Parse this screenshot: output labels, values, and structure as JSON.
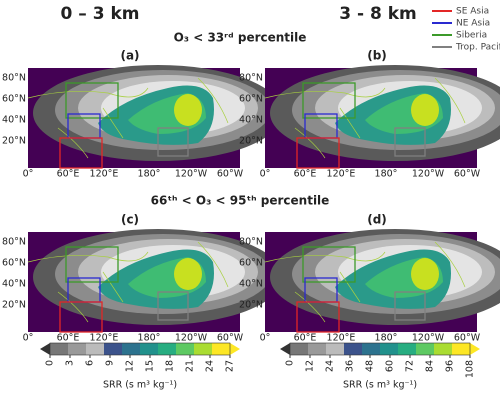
{
  "column_titles": [
    "0 – 3 km",
    "3 - 8 km"
  ],
  "row_titles": [
    "O₃ < 33ʳᵈ percentile",
    "66ᵗʰ  < O₃ < 95ᵗʰ percentile"
  ],
  "panels": [
    "(a)",
    "(b)",
    "(c)",
    "(d)"
  ],
  "lat_labels": [
    "80°N",
    "60°N",
    "40°N",
    "20°N"
  ],
  "lon_labels": [
    "0°",
    "60°E",
    "120°E",
    "180°",
    "120°W",
    "60°W"
  ],
  "legend": [
    {
      "name": "SE Asia",
      "color": "#e32626"
    },
    {
      "name": "NE Asia",
      "color": "#2a2ad0"
    },
    {
      "name": "Siberia",
      "color": "#3c9a2a"
    },
    {
      "name": "Trop. Pacif",
      "color": "#808080"
    }
  ],
  "colorbars": [
    {
      "label": "SRR (s m³ kg⁻¹)",
      "ticks": [
        0,
        3,
        6,
        9,
        12,
        15,
        18,
        21,
        24,
        27
      ]
    },
    {
      "label": "SRR (s m³ kg⁻¹)",
      "ticks": [
        0,
        12,
        24,
        36,
        48,
        60,
        72,
        84,
        96,
        108
      ]
    }
  ]
}
